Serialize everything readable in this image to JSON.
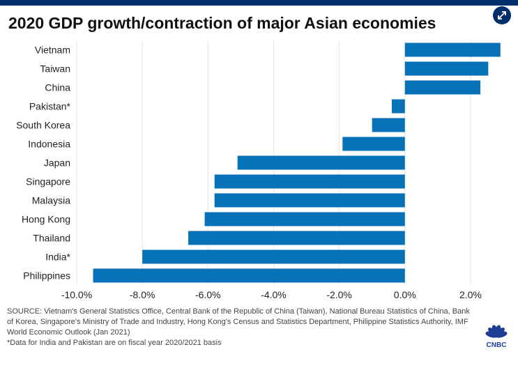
{
  "title": "2020 GDP growth/contraction of major Asian economies",
  "icons": {
    "expand": "expand-arrows-icon",
    "logo": "cnbc-peacock-logo"
  },
  "colors": {
    "bar": "#0872b9",
    "brand": "#002f6c",
    "grid": "#e6e6e6"
  },
  "chart_data": {
    "type": "bar",
    "orientation": "horizontal",
    "title": "2020 GDP growth/contraction of major Asian economies",
    "categories": [
      "Vietnam",
      "Taiwan",
      "China",
      "Pakistan*",
      "South Korea",
      "Indonesia",
      "Japan",
      "Singapore",
      "Malaysia",
      "Hong Kong",
      "Thailand",
      "India*",
      "Philippines"
    ],
    "values": [
      2.91,
      2.54,
      2.3,
      -0.4,
      -1.0,
      -1.9,
      -5.1,
      -5.8,
      -5.8,
      -6.1,
      -6.6,
      -8.0,
      -9.5
    ],
    "xlim": [
      -10.0,
      3.0
    ],
    "xticks": [
      "-10.0%",
      "-8.0%",
      "-6.0%",
      "-4.0%",
      "-2.0%",
      "0.0%",
      "2.0%"
    ],
    "grid": "vertical",
    "xlabel": "",
    "ylabel": ""
  },
  "footer": {
    "source": "SOURCE: Vietnam's General Statistics Office, Central Bank of the Republic of China (Taiwan), National Bureau Statistics of China, Bank of Korea, Singapore's Ministry of Trade and Industry, Hong Kong's Census and Statistics Department, Philippine Statistics Authority, IMF World Economic Outlook (Jan 2021)",
    "note": "*Data for India and Pakistan are on fiscal year 2020/2021 basis",
    "logo_text": "CNBC"
  }
}
